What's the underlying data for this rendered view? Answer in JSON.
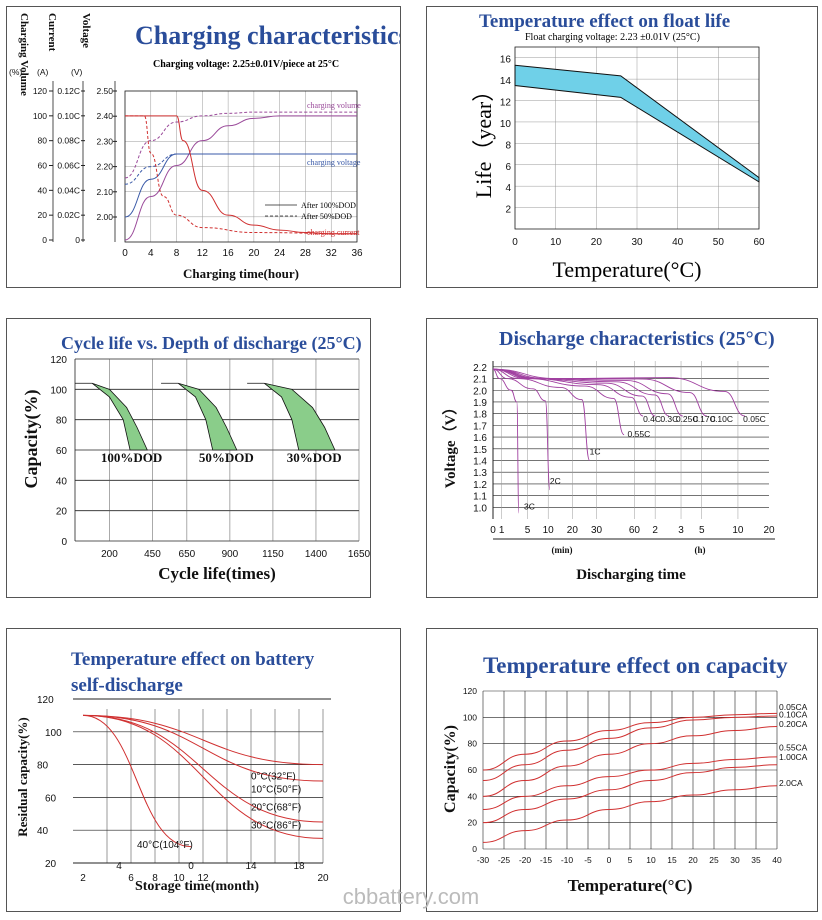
{
  "watermark": "cbbattery.com",
  "chart_data": [
    {
      "id": "charging",
      "type": "line",
      "title": "Charging characteristics",
      "subtitle": "Charging voltage: 2.25±0.01V/piece at 25°C",
      "xlabel": "Charging time(hour)",
      "x_ticks": [
        0,
        4,
        8,
        12,
        16,
        20,
        24,
        28,
        32,
        36
      ],
      "xlim": [
        0,
        36
      ],
      "y_axes": [
        {
          "label": "Charging Volume",
          "unit": "(%)",
          "ticks": [
            "120",
            "100",
            "80",
            "60",
            "40",
            "20",
            "0"
          ]
        },
        {
          "label": "Current",
          "unit": "(A)",
          "ticks": [
            "0.12C",
            "0.10C",
            "0.08C",
            "0.06C",
            "0.04C",
            "0.02C",
            "0"
          ]
        },
        {
          "label": "Voltage",
          "unit": "(V)",
          "ticks": [
            "2.50",
            "2.40",
            "2.30",
            "2.20",
            "2.10",
            "2.00"
          ]
        }
      ],
      "legend": {
        "solid": "After 100%DOD",
        "dashed": "After 50%DOD"
      },
      "series_labels": {
        "volume": "charging volume",
        "voltage": "charging voltage",
        "current": "charging current"
      },
      "series": [
        {
          "name": "charging volume (100%DOD)",
          "color": "#9a4a9a",
          "x": [
            0,
            4,
            8,
            12,
            16,
            20,
            24,
            28,
            32,
            36
          ],
          "y_pct": [
            0,
            35,
            60,
            80,
            92,
            98,
            100,
            100,
            100,
            100
          ]
        },
        {
          "name": "charging volume (50%DOD)",
          "color": "#9a4a9a",
          "dash": true,
          "x": [
            0,
            4,
            8,
            12,
            16,
            20,
            24,
            28,
            32,
            36
          ],
          "y_pct": [
            50,
            80,
            95,
            100,
            102,
            103,
            103,
            103,
            103,
            103
          ]
        },
        {
          "name": "charging voltage (100%DOD)",
          "color": "#3a5aa8",
          "x": [
            0,
            4,
            8,
            12,
            36
          ],
          "y_v": [
            2.0,
            2.15,
            2.25,
            2.25,
            2.25
          ]
        },
        {
          "name": "charging voltage (50%DOD)",
          "color": "#3a5aa8",
          "dash": true,
          "x": [
            0,
            4,
            8,
            12,
            36
          ],
          "y_v": [
            2.13,
            2.2,
            2.25,
            2.25,
            2.25
          ]
        },
        {
          "name": "charging current (100%DOD)",
          "color": "#d03030",
          "x": [
            0,
            8,
            9,
            12,
            16,
            20,
            24,
            28,
            32,
            36
          ],
          "y_c": [
            0.1,
            0.1,
            0.08,
            0.04,
            0.02,
            0.012,
            0.008,
            0.006,
            0.005,
            0.005
          ]
        },
        {
          "name": "charging current (50%DOD)",
          "color": "#d03030",
          "dash": true,
          "x": [
            0,
            3,
            4,
            6,
            8,
            12,
            20,
            36
          ],
          "y_c": [
            0.1,
            0.1,
            0.07,
            0.035,
            0.02,
            0.01,
            0.006,
            0.005
          ]
        }
      ]
    },
    {
      "id": "float",
      "type": "area",
      "title": "Temperature effect on float life",
      "subtitle": "Float charging voltage:  2.23 ±0.01V (25°C)",
      "xlabel": "Temperature(°C)",
      "ylabel": "Life（year）",
      "x_ticks": [
        0,
        10,
        20,
        30,
        40,
        50,
        60
      ],
      "y_ticks": [
        2,
        4,
        6,
        8,
        10,
        12,
        14,
        16
      ],
      "xlim": [
        0,
        60
      ],
      "ylim": [
        0,
        17
      ],
      "upper": {
        "x": [
          0,
          26,
          60
        ],
        "y": [
          15.3,
          14.3,
          4.8
        ]
      },
      "lower": {
        "x": [
          0,
          26,
          60
        ],
        "y": [
          13.4,
          12.3,
          4.4
        ]
      },
      "color": "#6fd0e8"
    },
    {
      "id": "cycle",
      "type": "area",
      "title": "Cycle life vs. Depth of discharge (25°C)",
      "xlabel": "Cycle life(times)",
      "ylabel": "Capacity(%)",
      "x_ticks": [
        "200",
        "450",
        "650",
        "900",
        "1150",
        "1400",
        "1650"
      ],
      "x_tick_values": [
        200,
        450,
        650,
        900,
        1150,
        1400,
        1650
      ],
      "y_ticks": [
        0,
        20,
        40,
        60,
        80,
        100,
        120
      ],
      "xlim": [
        0,
        1650
      ],
      "ylim": [
        0,
        120
      ],
      "bands": [
        {
          "label": "100%DOD",
          "outer": {
            "x": [
              0,
              100,
              200,
              280,
              320
            ],
            "y": [
              104,
              104,
              95,
              80,
              60
            ]
          },
          "inner": {
            "x": [
              100,
              200,
              300,
              360,
              420
            ],
            "y": [
              104,
              100,
              88,
              75,
              60
            ]
          }
        },
        {
          "label": "50%DOD",
          "outer": {
            "x": [
              500,
              600,
              700,
              760,
              800
            ],
            "y": [
              104,
              104,
              95,
              80,
              60
            ]
          },
          "inner": {
            "x": [
              600,
              720,
              820,
              880,
              940
            ],
            "y": [
              104,
              100,
              88,
              75,
              60
            ]
          }
        },
        {
          "label": "30%DOD",
          "outer": {
            "x": [
              1000,
              1100,
              1200,
              1260,
              1300
            ],
            "y": [
              104,
              104,
              95,
              80,
              60
            ]
          },
          "inner": {
            "x": [
              1100,
              1260,
              1380,
              1450,
              1510
            ],
            "y": [
              104,
              100,
              88,
              75,
              60
            ]
          }
        }
      ],
      "color": "#8acd8a"
    },
    {
      "id": "discharge",
      "type": "line",
      "title": "Discharge characteristics (25°C)",
      "xlabel": "Discharging time",
      "ylabel": "Voltage（V）",
      "y_ticks": [
        "2.2",
        "2.1",
        "2.0",
        "1.9",
        "1.8",
        "1.7",
        "1.6",
        "1.5",
        "1.4",
        "1.3",
        "1.2",
        "1.1",
        "1.0"
      ],
      "ylim": [
        0.9,
        2.25
      ],
      "x_ticks_min": [
        "0",
        "1",
        "5",
        "10",
        "20",
        "30",
        "60"
      ],
      "x_ticks_h": [
        "2",
        "3",
        "5",
        "10",
        "20"
      ],
      "x_unit_min": "(min)",
      "x_unit_h": "(h)",
      "curve_labels": [
        "3C",
        "2C",
        "1C",
        "0.55C",
        "0.4C",
        "0.3C",
        "0.25C",
        "0.17C",
        "0.10C",
        "0.05C"
      ],
      "end_positions": [
        1.5,
        3.3,
        5.6,
        7.6,
        8.7,
        9.4,
        10.2,
        11.0,
        12.4,
        14.6
      ],
      "end_voltages": [
        0.95,
        1.15,
        1.4,
        1.62,
        1.78,
        1.78,
        1.78,
        1.78,
        1.78,
        1.78
      ],
      "color": "#a040a0"
    },
    {
      "id": "selfdischarge",
      "type": "line",
      "title_line1": "Temperature effect on battery",
      "title_line2": "self-discharge",
      "xlabel": "Storage time(month)",
      "ylabel": "Residual capacity(%)",
      "x_ticks_bottom": [
        "2",
        "6",
        "8",
        "10",
        "12",
        "20"
      ],
      "x_ticks_top": [
        "4",
        "0",
        "14",
        "18"
      ],
      "y_ticks": [
        "120",
        "100",
        "80",
        "60",
        "40",
        "20"
      ],
      "curves": [
        {
          "label": "0°C(32°F)",
          "x": [
            0,
            20
          ],
          "y": [
            110,
            80
          ]
        },
        {
          "label": "10°C(50°F)",
          "x": [
            0,
            20
          ],
          "y": [
            110,
            70
          ]
        },
        {
          "label": "20°C(68°F)",
          "x": [
            0,
            20
          ],
          "y": [
            110,
            45
          ]
        },
        {
          "label": "30°C(86°F)",
          "x": [
            0,
            20
          ],
          "y": [
            110,
            35
          ]
        },
        {
          "label": "40°C(104°F)",
          "x": [
            0,
            9
          ],
          "y": [
            110,
            30
          ]
        }
      ],
      "color": "#d03030"
    },
    {
      "id": "capacity",
      "type": "line",
      "title": "Temperature effect on capacity",
      "xlabel": "Temperature(°C)",
      "ylabel": "Capacity(%)",
      "x_ticks": [
        "-30",
        "-25",
        "-20",
        "-15",
        "-10",
        "-5",
        "0",
        "5",
        "10",
        "15",
        "20",
        "25",
        "30",
        "35",
        "40"
      ],
      "xlim": [
        -30,
        40
      ],
      "ylim": [
        0,
        120
      ],
      "y_ticks": [
        0,
        20,
        40,
        60,
        80,
        100,
        120
      ],
      "curves": [
        {
          "label": "0.05CA",
          "x": [
            -30,
            -20,
            -10,
            0,
            10,
            20,
            30,
            40
          ],
          "y": [
            60,
            72,
            82,
            90,
            96,
            100,
            102,
            103
          ]
        },
        {
          "label": "0.10CA",
          "x": [
            -30,
            -20,
            -10,
            0,
            10,
            20,
            30,
            40
          ],
          "y": [
            52,
            64,
            75,
            84,
            92,
            98,
            100,
            101
          ]
        },
        {
          "label": "0.20CA",
          "x": [
            -30,
            -20,
            -10,
            0,
            10,
            20,
            30,
            40
          ],
          "y": [
            40,
            52,
            63,
            72,
            80,
            86,
            90,
            93
          ]
        },
        {
          "label": "0.55CA",
          "x": [
            -30,
            -20,
            -10,
            0,
            10,
            20,
            30,
            40
          ],
          "y": [
            30,
            40,
            48,
            55,
            60,
            65,
            68,
            70
          ]
        },
        {
          "label": "1.00CA",
          "x": [
            -30,
            -20,
            -10,
            0,
            10,
            20,
            30,
            40
          ],
          "y": [
            20,
            30,
            38,
            45,
            52,
            58,
            62,
            64
          ]
        },
        {
          "label": "2.0CA",
          "x": [
            -30,
            -20,
            -10,
            0,
            10,
            20,
            30,
            40
          ],
          "y": [
            5,
            14,
            22,
            30,
            36,
            41,
            45,
            48
          ]
        }
      ],
      "color": "#d03030"
    }
  ]
}
